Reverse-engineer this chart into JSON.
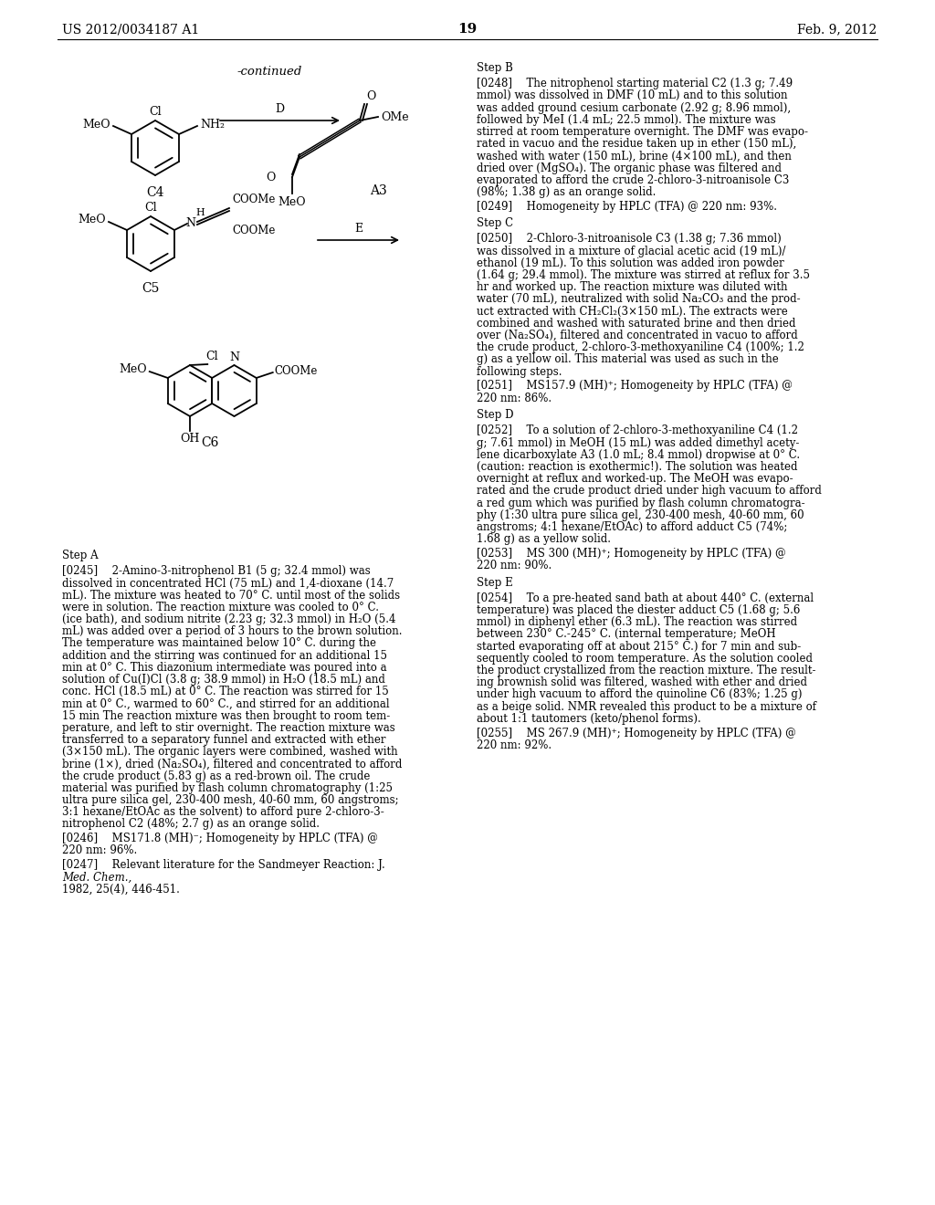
{
  "header_left": "US 2012/0034187 A1",
  "header_right": "Feb. 9, 2012",
  "page_number": "19",
  "background": "#ffffff",
  "text_color": "#000000"
}
